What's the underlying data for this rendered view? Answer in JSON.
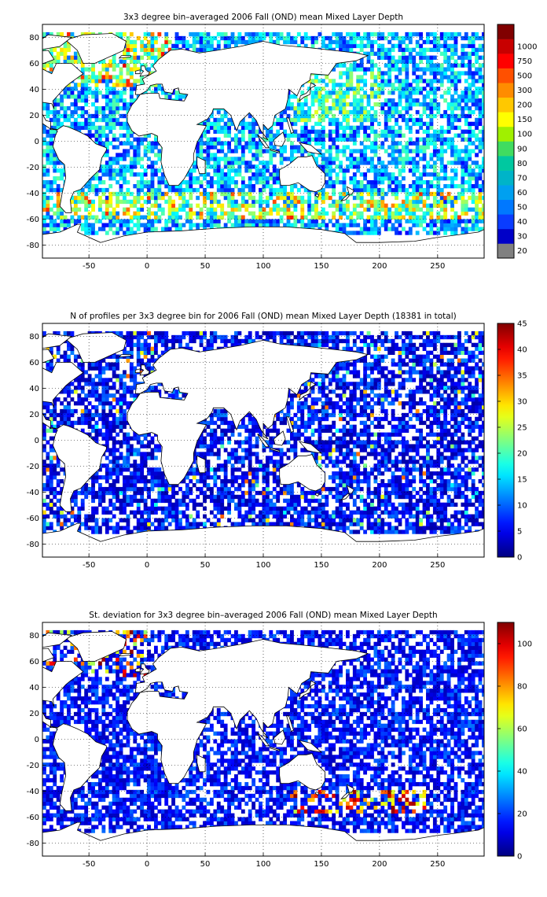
{
  "panels": [
    {
      "id": "mld",
      "title": "3x3 degree bin–averaged 2006 Fall (OND) mean Mixed Layer Depth",
      "colorbar": {
        "type": "discrete",
        "labels": [
          "20",
          "30",
          "40",
          "50",
          "60",
          "70",
          "80",
          "90",
          "100",
          "150",
          "200",
          "300",
          "500",
          "750",
          "1000"
        ],
        "colors": [
          "#808080",
          "#0000c8",
          "#0a3cff",
          "#0078ff",
          "#00a0f0",
          "#00b4c8",
          "#00c8a0",
          "#40dc60",
          "#a0f000",
          "#ffff00",
          "#ffc800",
          "#ff8c00",
          "#ff5000",
          "#ff0000",
          "#c80000",
          "#800000"
        ]
      }
    },
    {
      "id": "nprof",
      "title": "N of profiles per 3x3 degree bin for 2006 Fall (OND) mean Mixed Layer Depth  (18381 in total)",
      "colorbar": {
        "type": "continuous",
        "min": 0,
        "max": 45,
        "ticks": [
          0,
          5,
          10,
          15,
          20,
          25,
          30,
          35,
          40,
          45
        ]
      }
    },
    {
      "id": "std",
      "title": "St. deviation for 3x3 degree bin–averaged 2006 Fall (OND) mean Mixed Layer Depth",
      "colorbar": {
        "type": "continuous",
        "min": 0,
        "max": 110,
        "ticks": [
          0,
          20,
          40,
          60,
          80,
          100
        ]
      }
    }
  ],
  "axes": {
    "x_ticks": [
      -50,
      0,
      50,
      100,
      150,
      200,
      250
    ],
    "y_ticks": [
      80,
      60,
      40,
      20,
      0,
      -20,
      -40,
      -60,
      -80
    ],
    "xlim": [
      -90,
      290
    ],
    "ylim": [
      -90,
      90
    ],
    "grid": true
  }
}
